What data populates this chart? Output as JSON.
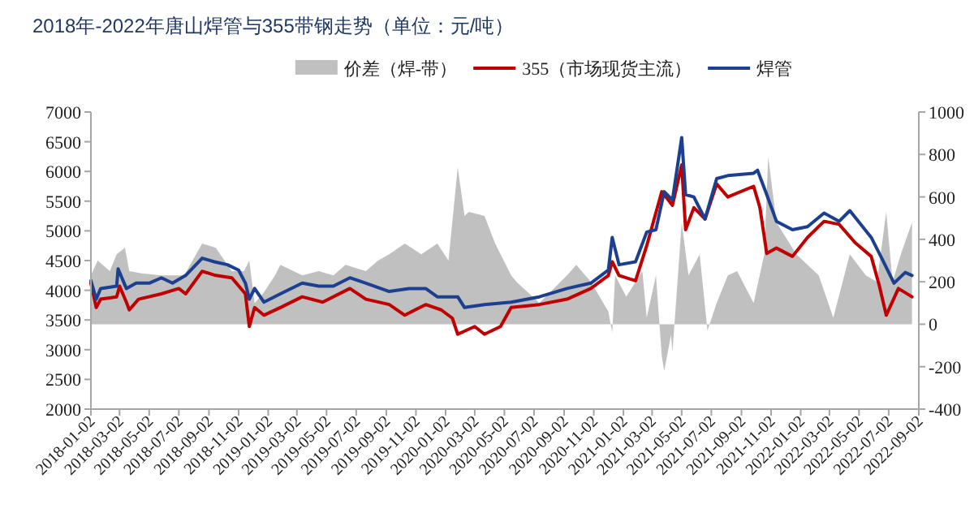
{
  "chart_data": {
    "type": "line",
    "title": "2018年-2022年唐山焊管与355带钢走势（单位：元/吨）",
    "legend": "top",
    "xlim": [
      "2018-01-02",
      "2022-09-02"
    ],
    "xticks": [
      "2018-01-02",
      "2018-03-02",
      "2018-05-02",
      "2018-07-02",
      "2018-09-02",
      "2018-11-02",
      "2019-01-02",
      "2019-03-02",
      "2019-05-02",
      "2019-07-02",
      "2019-09-02",
      "2019-11-02",
      "2020-01-02",
      "2020-03-02",
      "2020-05-02",
      "2020-07-02",
      "2020-09-02",
      "2020-11-02",
      "2021-01-02",
      "2021-03-02",
      "2021-05-02",
      "2021-07-02",
      "2021-09-02",
      "2021-11-02",
      "2022-01-02",
      "2022-03-02",
      "2022-05-02",
      "2022-07-02",
      "2022-09-02"
    ],
    "ylim": [
      2000,
      7000
    ],
    "yticks": [
      2000,
      2500,
      3000,
      3500,
      4000,
      4500,
      5000,
      5500,
      6000,
      6500,
      7000
    ],
    "y2lim": [
      -400,
      1000
    ],
    "y2ticks": [
      -400,
      -200,
      0,
      200,
      400,
      600,
      800,
      1000
    ],
    "series": [
      {
        "name": "价差（焊-带）",
        "type": "area",
        "axis": "y2",
        "color": "#c0c0c0",
        "x": [
          "2018-01-02",
          "2018-01-16",
          "2018-02-10",
          "2018-02-24",
          "2018-03-13",
          "2018-03-22",
          "2018-04-16",
          "2018-05-27",
          "2018-07-13",
          "2018-08-19",
          "2018-09-16",
          "2018-10-19",
          "2018-11-13",
          "2018-11-24",
          "2018-12-05",
          "2018-12-24",
          "2019-01-16",
          "2019-01-27",
          "2019-03-13",
          "2019-04-16",
          "2019-05-16",
          "2019-06-10",
          "2019-07-22",
          "2019-08-16",
          "2019-09-08",
          "2019-10-10",
          "2019-11-13",
          "2019-12-16",
          "2020-01-08",
          "2020-01-27",
          "2020-02-10",
          "2020-02-19",
          "2020-03-22",
          "2020-04-13",
          "2020-05-16",
          "2020-05-27",
          "2020-07-13",
          "2020-09-08",
          "2020-09-27",
          "2020-10-27",
          "2020-12-02",
          "2020-12-10",
          "2020-12-16",
          "2021-01-08",
          "2021-02-10",
          "2021-02-19",
          "2021-03-10",
          "2021-03-22",
          "2021-03-27",
          "2021-04-10",
          "2021-04-13",
          "2021-05-02",
          "2021-05-16",
          "2021-06-08",
          "2021-06-24",
          "2021-07-13",
          "2021-08-05",
          "2021-08-24",
          "2021-09-27",
          "2021-10-19",
          "2021-10-27",
          "2021-11-13",
          "2021-12-24",
          "2022-02-08",
          "2022-03-10",
          "2022-04-13",
          "2022-05-16",
          "2022-06-08",
          "2022-06-27",
          "2022-07-10",
          "2022-07-27",
          "2022-08-19"
        ],
        "values": [
          230,
          300,
          250,
          330,
          360,
          250,
          240,
          230,
          230,
          380,
          360,
          250,
          250,
          300,
          100,
          150,
          230,
          280,
          230,
          250,
          230,
          280,
          250,
          300,
          330,
          380,
          330,
          380,
          300,
          740,
          510,
          530,
          510,
          380,
          230,
          200,
          100,
          230,
          280,
          200,
          60,
          -40,
          230,
          130,
          250,
          30,
          230,
          -150,
          -220,
          -50,
          -130,
          480,
          230,
          330,
          -30,
          100,
          230,
          250,
          100,
          330,
          790,
          480,
          330,
          230,
          30,
          330,
          230,
          200,
          530,
          200,
          330,
          480
        ]
      },
      {
        "name": "355（市场现货主流）",
        "type": "line",
        "color": "#c00000",
        "x": [
          "2018-01-02",
          "2018-01-13",
          "2018-01-22",
          "2018-02-24",
          "2018-03-02",
          "2018-03-16",
          "2018-03-22",
          "2018-04-10",
          "2018-05-27",
          "2018-07-02",
          "2018-07-16",
          "2018-08-19",
          "2018-09-16",
          "2018-10-19",
          "2018-11-16",
          "2018-11-24",
          "2018-12-05",
          "2018-12-24",
          "2019-01-27",
          "2019-03-13",
          "2019-04-24",
          "2019-06-19",
          "2019-07-22",
          "2019-09-08",
          "2019-10-10",
          "2019-11-22",
          "2019-12-24",
          "2020-01-16",
          "2020-01-27",
          "2020-03-02",
          "2020-03-22",
          "2020-04-24",
          "2020-05-16",
          "2020-07-13",
          "2020-09-08",
          "2020-10-27",
          "2020-12-02",
          "2020-12-10",
          "2020-12-24",
          "2021-01-27",
          "2021-02-19",
          "2021-03-22",
          "2021-04-13",
          "2021-05-02",
          "2021-05-10",
          "2021-05-27",
          "2021-06-19",
          "2021-07-13",
          "2021-08-05",
          "2021-09-27",
          "2021-10-10",
          "2021-10-24",
          "2021-11-13",
          "2021-12-16",
          "2022-01-16",
          "2022-02-19",
          "2022-03-22",
          "2022-04-24",
          "2022-05-27",
          "2022-06-13",
          "2022-06-27",
          "2022-07-22",
          "2022-08-19"
        ],
        "values": [
          4120,
          3710,
          3850,
          3890,
          4070,
          3800,
          3670,
          3850,
          3940,
          4030,
          3940,
          4320,
          4250,
          4210,
          3940,
          3390,
          3710,
          3580,
          3710,
          3890,
          3800,
          4030,
          3850,
          3760,
          3580,
          3760,
          3670,
          3530,
          3260,
          3390,
          3260,
          3390,
          3710,
          3760,
          3850,
          4030,
          4250,
          4480,
          4250,
          4160,
          4750,
          5660,
          5430,
          6110,
          5020,
          5390,
          5200,
          5790,
          5570,
          5750,
          5390,
          4620,
          4710,
          4570,
          4890,
          5160,
          5110,
          4800,
          4570,
          4070,
          3580,
          4030,
          3890
        ]
      },
      {
        "name": "焊管",
        "type": "line",
        "color": "#1c3f8f",
        "x": [
          "2018-01-02",
          "2018-01-13",
          "2018-01-22",
          "2018-02-24",
          "2018-02-27",
          "2018-03-16",
          "2018-04-05",
          "2018-05-02",
          "2018-05-27",
          "2018-06-19",
          "2018-07-16",
          "2018-08-19",
          "2018-09-13",
          "2018-10-10",
          "2018-11-02",
          "2018-11-16",
          "2018-11-24",
          "2018-12-05",
          "2018-12-24",
          "2019-01-27",
          "2019-03-13",
          "2019-04-16",
          "2019-05-16",
          "2019-06-19",
          "2019-07-22",
          "2019-09-08",
          "2019-10-19",
          "2019-11-22",
          "2019-12-16",
          "2020-01-27",
          "2020-02-10",
          "2020-03-22",
          "2020-05-16",
          "2020-07-13",
          "2020-09-08",
          "2020-10-27",
          "2020-12-02",
          "2020-12-10",
          "2020-12-24",
          "2021-01-27",
          "2021-02-19",
          "2021-03-10",
          "2021-03-27",
          "2021-04-13",
          "2021-05-02",
          "2021-05-10",
          "2021-05-27",
          "2021-06-19",
          "2021-07-13",
          "2021-08-05",
          "2021-09-27",
          "2021-10-05",
          "2021-10-24",
          "2021-11-13",
          "2021-12-16",
          "2022-01-16",
          "2022-02-19",
          "2022-03-22",
          "2022-04-13",
          "2022-05-27",
          "2022-06-19",
          "2022-07-13",
          "2022-08-05",
          "2022-08-19"
        ],
        "values": [
          4160,
          3850,
          4030,
          4070,
          4360,
          4030,
          4120,
          4120,
          4210,
          4120,
          4250,
          4540,
          4480,
          4430,
          4340,
          4120,
          3850,
          4030,
          3800,
          3940,
          4120,
          4070,
          4070,
          4210,
          4120,
          3980,
          4030,
          4030,
          3890,
          3890,
          3710,
          3760,
          3800,
          3890,
          4030,
          4120,
          4340,
          4890,
          4430,
          4480,
          4980,
          5020,
          5660,
          5520,
          6570,
          5610,
          5570,
          5200,
          5880,
          5930,
          5970,
          6020,
          5610,
          5160,
          5020,
          5070,
          5300,
          5160,
          5340,
          4890,
          4520,
          4120,
          4300,
          4250
        ]
      }
    ]
  }
}
